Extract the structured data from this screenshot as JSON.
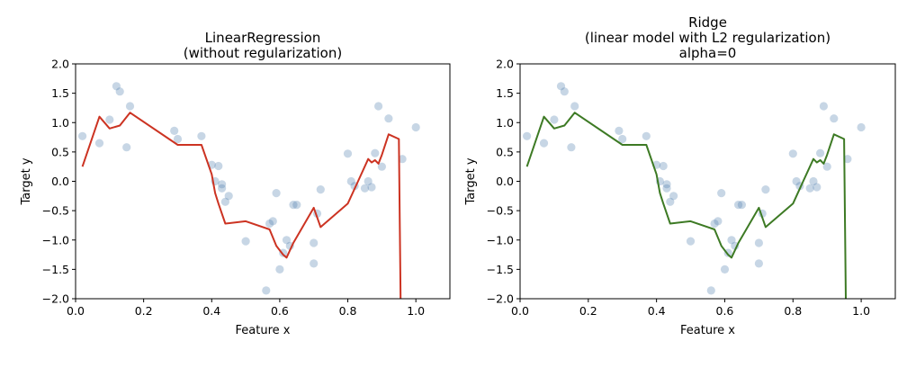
{
  "chart_data": [
    {
      "type": "scatter",
      "title": [
        "LinearRegression",
        "(without regularization)"
      ],
      "xlabel": "Feature x",
      "ylabel": "Target y",
      "xlim": [
        0.0,
        1.1
      ],
      "ylim": [
        -2.0,
        2.0
      ],
      "xticks": [
        0.0,
        0.2,
        0.4,
        0.6,
        0.8,
        1.0
      ],
      "yticks": [
        -2.0,
        -1.5,
        -1.0,
        -0.5,
        0.0,
        0.5,
        1.0,
        1.5,
        2.0
      ],
      "line_color": "#cc3322",
      "points_color": "#4477aa",
      "line": {
        "x": [
          0.02,
          0.07,
          0.1,
          0.13,
          0.16,
          0.3,
          0.37,
          0.4,
          0.41,
          0.42,
          0.44,
          0.5,
          0.57,
          0.59,
          0.61,
          0.62,
          0.64,
          0.7,
          0.72,
          0.8,
          0.83,
          0.86,
          0.87,
          0.88,
          0.89,
          0.9,
          0.92,
          0.95,
          0.955
        ],
        "y": [
          0.25,
          1.1,
          0.9,
          0.95,
          1.17,
          0.62,
          0.62,
          0.12,
          -0.2,
          -0.38,
          -0.72,
          -0.68,
          -0.82,
          -1.1,
          -1.25,
          -1.3,
          -1.05,
          -0.45,
          -0.78,
          -0.38,
          0.0,
          0.38,
          0.32,
          0.36,
          0.3,
          0.45,
          0.8,
          0.72,
          -2.0
        ]
      },
      "points": {
        "x": [
          0.02,
          0.07,
          0.1,
          0.12,
          0.13,
          0.15,
          0.16,
          0.29,
          0.3,
          0.37,
          0.4,
          0.41,
          0.42,
          0.43,
          0.43,
          0.44,
          0.45,
          0.5,
          0.56,
          0.57,
          0.58,
          0.59,
          0.6,
          0.61,
          0.62,
          0.63,
          0.64,
          0.65,
          0.7,
          0.7,
          0.71,
          0.72,
          0.8,
          0.81,
          0.82,
          0.85,
          0.86,
          0.87,
          0.88,
          0.89,
          0.9,
          0.92,
          0.96,
          1.0
        ],
        "y": [
          0.77,
          0.65,
          1.05,
          1.62,
          1.53,
          0.58,
          1.28,
          0.86,
          0.72,
          0.77,
          0.28,
          0.0,
          0.26,
          -0.05,
          -0.12,
          -0.35,
          -0.25,
          -1.02,
          -1.86,
          -0.72,
          -0.68,
          -0.2,
          -1.5,
          -1.22,
          -1.0,
          -1.1,
          -0.4,
          -0.4,
          -1.05,
          -1.4,
          -0.55,
          -0.14,
          0.47,
          0.0,
          -0.08,
          -0.12,
          0.0,
          -0.1,
          0.48,
          1.28,
          0.25,
          1.07,
          0.38,
          0.92
        ]
      }
    },
    {
      "type": "scatter",
      "title": [
        "Ridge",
        "(linear model with L2 regularization)",
        "alpha=0"
      ],
      "xlabel": "Feature x",
      "ylabel": "Target y",
      "xlim": [
        0.0,
        1.1
      ],
      "ylim": [
        -2.0,
        2.0
      ],
      "xticks": [
        0.0,
        0.2,
        0.4,
        0.6,
        0.8,
        1.0
      ],
      "yticks": [
        -2.0,
        -1.5,
        -1.0,
        -0.5,
        0.0,
        0.5,
        1.0,
        1.5,
        2.0
      ],
      "line_color": "#3d7a24",
      "points_color": "#4477aa",
      "line": {
        "x": [
          0.02,
          0.07,
          0.1,
          0.13,
          0.16,
          0.3,
          0.37,
          0.4,
          0.41,
          0.42,
          0.44,
          0.5,
          0.57,
          0.59,
          0.61,
          0.62,
          0.64,
          0.7,
          0.72,
          0.8,
          0.83,
          0.86,
          0.87,
          0.88,
          0.89,
          0.9,
          0.92,
          0.95,
          0.955
        ],
        "y": [
          0.25,
          1.1,
          0.9,
          0.95,
          1.17,
          0.62,
          0.62,
          0.12,
          -0.2,
          -0.38,
          -0.72,
          -0.68,
          -0.82,
          -1.1,
          -1.25,
          -1.3,
          -1.05,
          -0.45,
          -0.78,
          -0.38,
          0.0,
          0.38,
          0.32,
          0.36,
          0.3,
          0.45,
          0.8,
          0.72,
          -2.0
        ]
      },
      "points": {
        "x": [
          0.02,
          0.07,
          0.1,
          0.12,
          0.13,
          0.15,
          0.16,
          0.29,
          0.3,
          0.37,
          0.4,
          0.41,
          0.42,
          0.43,
          0.43,
          0.44,
          0.45,
          0.5,
          0.56,
          0.57,
          0.58,
          0.59,
          0.6,
          0.61,
          0.62,
          0.63,
          0.64,
          0.65,
          0.7,
          0.7,
          0.71,
          0.72,
          0.8,
          0.81,
          0.82,
          0.85,
          0.86,
          0.87,
          0.88,
          0.89,
          0.9,
          0.92,
          0.96,
          1.0
        ],
        "y": [
          0.77,
          0.65,
          1.05,
          1.62,
          1.53,
          0.58,
          1.28,
          0.86,
          0.72,
          0.77,
          0.28,
          0.0,
          0.26,
          -0.05,
          -0.12,
          -0.35,
          -0.25,
          -1.02,
          -1.86,
          -0.72,
          -0.68,
          -0.2,
          -1.5,
          -1.22,
          -1.0,
          -1.1,
          -0.4,
          -0.4,
          -1.05,
          -1.4,
          -0.55,
          -0.14,
          0.47,
          0.0,
          -0.08,
          -0.12,
          0.0,
          -0.1,
          0.48,
          1.28,
          0.25,
          1.07,
          0.38,
          0.92
        ]
      }
    }
  ]
}
